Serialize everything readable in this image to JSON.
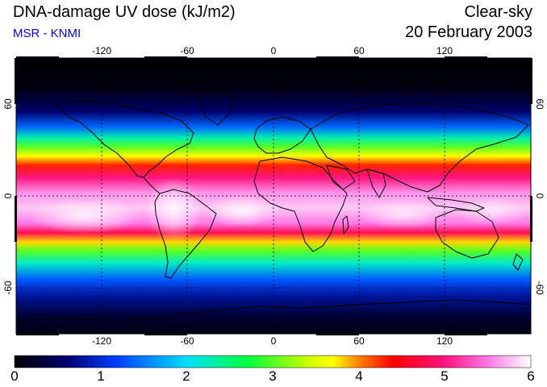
{
  "header": {
    "title": "DNA-damage UV dose (kJ/m2)",
    "source": "MSR - KNMI",
    "condition": "Clear-sky",
    "date": "20 February 2003"
  },
  "map": {
    "projection": "equirectangular",
    "lon_range": [
      -180,
      180
    ],
    "lat_range": [
      -90,
      90
    ],
    "lon_ticks": [
      "-120",
      "-60",
      "0",
      "60",
      "120"
    ],
    "lat_ticks": [
      "60",
      "0",
      "-60"
    ],
    "zonal_profile": [
      {
        "lat": 90,
        "value": 0.0
      },
      {
        "lat": 70,
        "value": 0.1
      },
      {
        "lat": 55,
        "value": 0.6
      },
      {
        "lat": 45,
        "value": 1.4
      },
      {
        "lat": 38,
        "value": 2.3
      },
      {
        "lat": 32,
        "value": 3.0
      },
      {
        "lat": 26,
        "value": 3.7
      },
      {
        "lat": 20,
        "value": 4.3
      },
      {
        "lat": 12,
        "value": 5.0
      },
      {
        "lat": 2,
        "value": 5.6
      },
      {
        "lat": -8,
        "value": 5.8
      },
      {
        "lat": -18,
        "value": 5.5
      },
      {
        "lat": -24,
        "value": 4.8
      },
      {
        "lat": -30,
        "value": 3.8
      },
      {
        "lat": -36,
        "value": 3.0
      },
      {
        "lat": -44,
        "value": 2.2
      },
      {
        "lat": -55,
        "value": 1.3
      },
      {
        "lat": -65,
        "value": 0.8
      },
      {
        "lat": -78,
        "value": 0.3
      },
      {
        "lat": -90,
        "value": 0.1
      }
    ]
  },
  "colorbar": {
    "min": 0,
    "max": 6,
    "labels": [
      "0",
      "1",
      "2",
      "3",
      "4",
      "5",
      "6"
    ],
    "stops": [
      {
        "value": 0.0,
        "color": "#000000"
      },
      {
        "value": 0.6,
        "color": "#00006e"
      },
      {
        "value": 1.2,
        "color": "#0040ff"
      },
      {
        "value": 2.0,
        "color": "#00e0ff"
      },
      {
        "value": 2.7,
        "color": "#00ff40"
      },
      {
        "value": 3.4,
        "color": "#c8ff00"
      },
      {
        "value": 3.7,
        "color": "#ffff00"
      },
      {
        "value": 4.0,
        "color": "#ff8000"
      },
      {
        "value": 4.4,
        "color": "#ff0000"
      },
      {
        "value": 5.0,
        "color": "#ff1480"
      },
      {
        "value": 5.5,
        "color": "#ff78e6"
      },
      {
        "value": 6.0,
        "color": "#ffffff"
      }
    ]
  }
}
